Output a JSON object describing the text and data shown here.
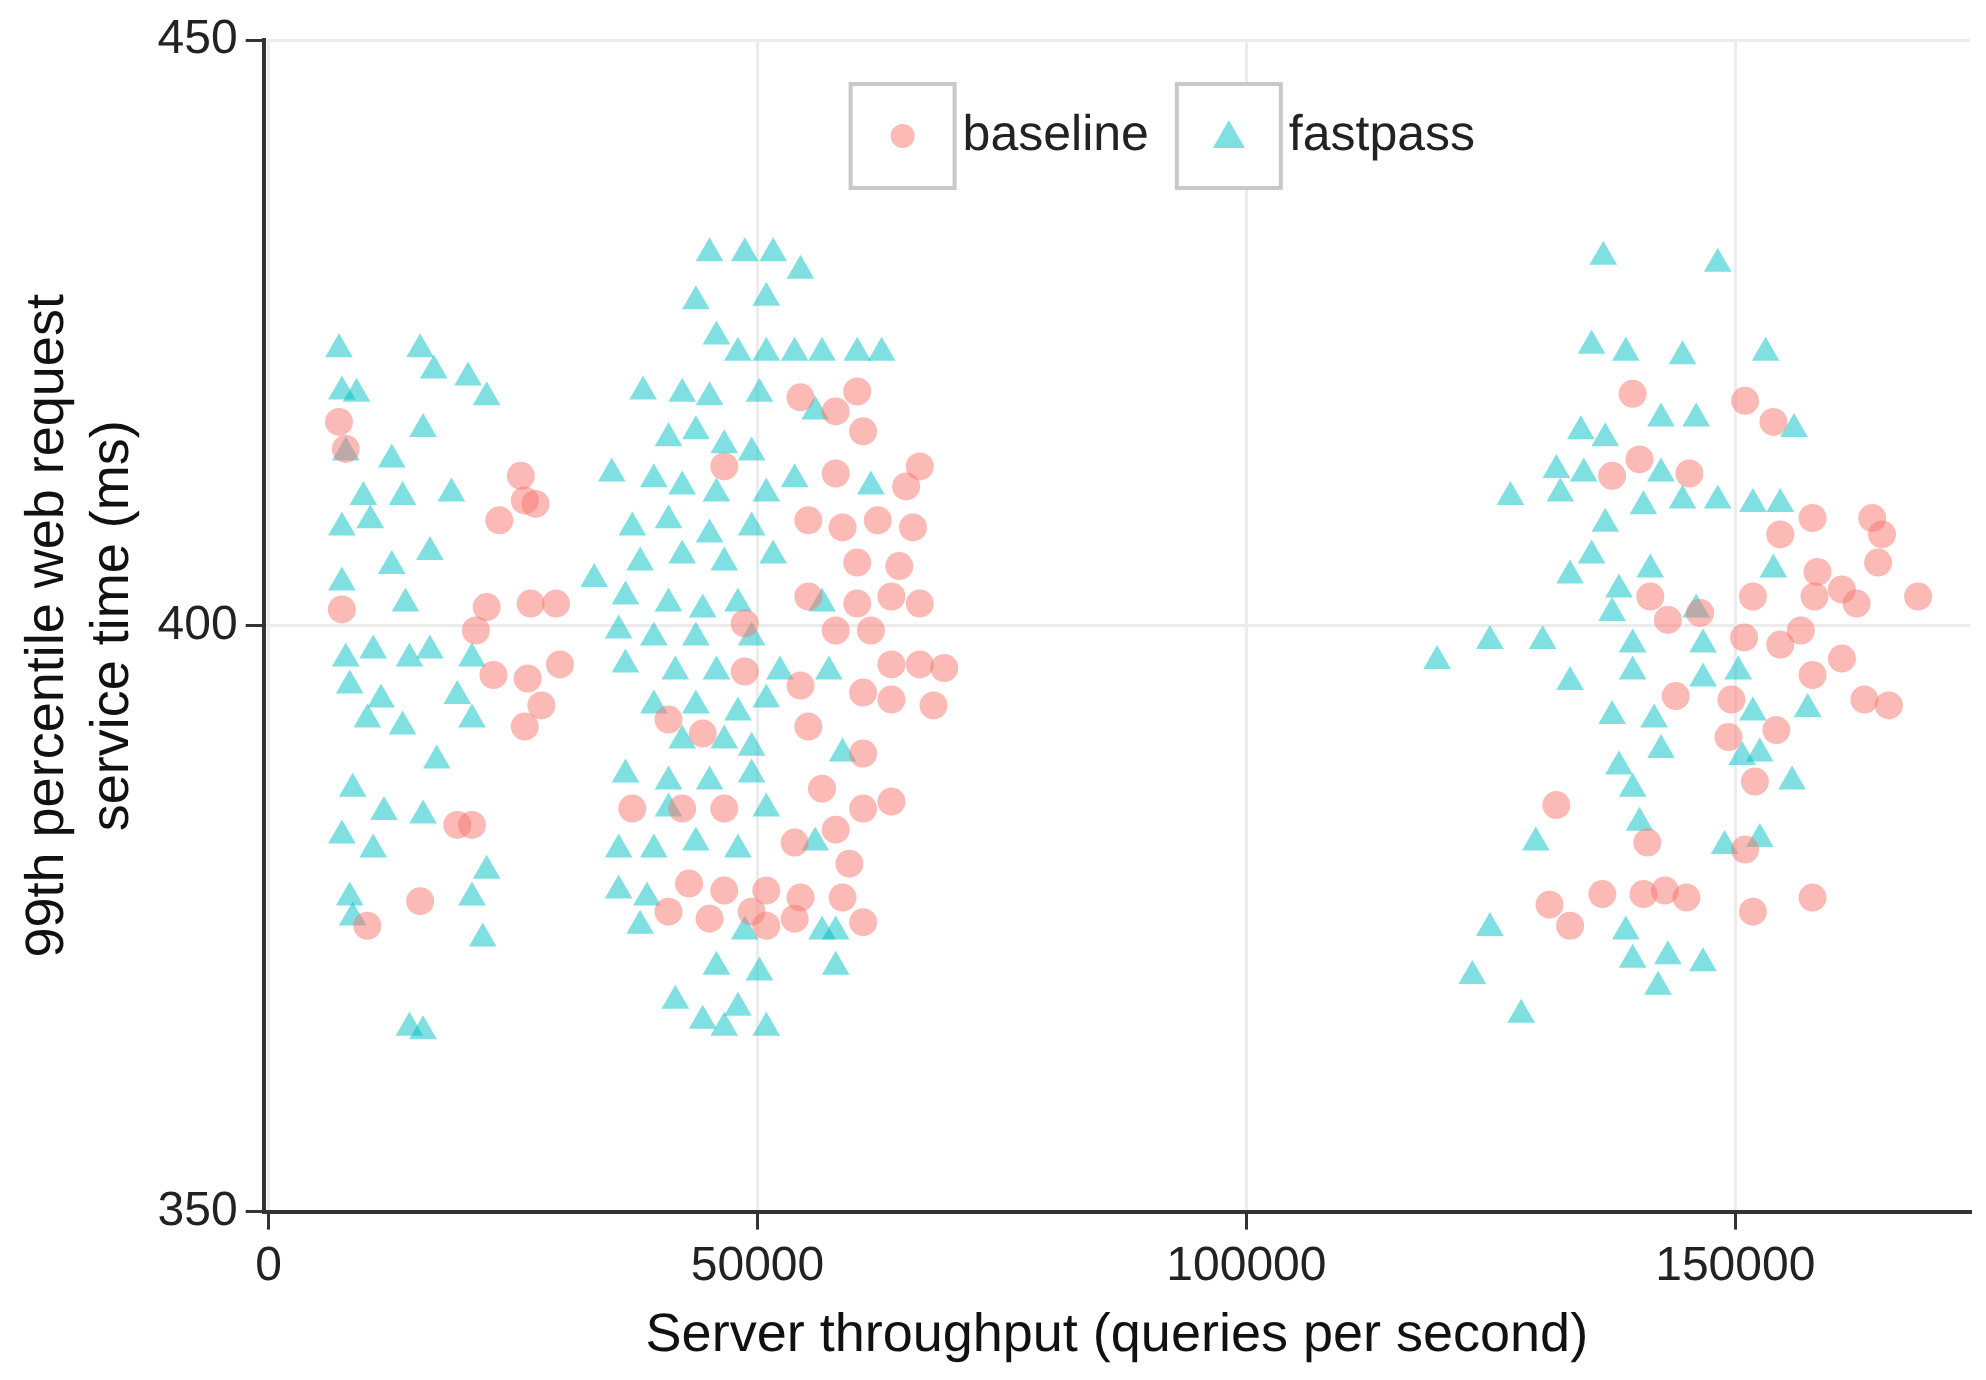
{
  "chart_data": {
    "type": "scatter",
    "xlabel": "Server throughput (queries per second)",
    "ylabel": "99th percentile web request\nservice time (ms)",
    "xlim": [
      -500,
      174000
    ],
    "xticks": [
      0,
      50000,
      100000,
      150000
    ],
    "ylim": [
      350,
      450
    ],
    "yticks": [
      350,
      400,
      450
    ],
    "grid": true,
    "legend": "top",
    "series": [
      {
        "name": "baseline",
        "color": "#f8766d",
        "marker": "circle",
        "x": [
          7200,
          7900,
          23600,
          26200,
          27300,
          25800,
          7500,
          22300,
          26800,
          29400,
          21200,
          23000,
          26500,
          27900,
          29800,
          26200,
          19300,
          20800,
          15500,
          10100,
          60200,
          58000,
          54400,
          60800,
          66600,
          65200,
          58000,
          46600,
          55200,
          58700,
          62300,
          65900,
          60200,
          64500,
          55200,
          60200,
          63700,
          66600,
          58000,
          61600,
          48700,
          63700,
          66600,
          69100,
          60800,
          63700,
          68000,
          54400,
          48700,
          40900,
          44400,
          55200,
          60800,
          56600,
          37200,
          42300,
          46600,
          60800,
          63700,
          58000,
          53800,
          59400,
          43000,
          46600,
          50900,
          54400,
          58700,
          40900,
          45100,
          49400,
          53800,
          60800,
          50900,
          139500,
          151000,
          153900,
          140200,
          145300,
          137400,
          157900,
          164000,
          165000,
          154600,
          164600,
          158400,
          160900,
          162400,
          168700,
          151800,
          158100,
          141300,
          143100,
          146400,
          150900,
          154600,
          156700,
          160900,
          157900,
          143900,
          149600,
          163200,
          165700,
          149300,
          154200,
          152000,
          131700,
          141000,
          151000,
          136400,
          140600,
          142800,
          145000,
          157900,
          131000,
          133100,
          151800
        ],
        "values": [
          417.4,
          415.1,
          409,
          410.7,
          410.4,
          412.8,
          401.4,
          401.6,
          401.9,
          401.9,
          399.6,
          395.8,
          395.5,
          393.2,
          396.7,
          391.4,
          383,
          383,
          376.5,
          374.4,
          420,
          418.3,
          419.5,
          416.6,
          413.6,
          411.9,
          413,
          413.6,
          409,
          408.4,
          409,
          408.4,
          405.4,
          405.1,
          402.5,
          401.9,
          402.5,
          401.9,
          399.6,
          399.6,
          400.2,
          396.7,
          396.7,
          396.4,
          394.3,
          393.7,
          393.2,
          394.9,
          396.1,
          392,
          390.8,
          391.4,
          389.1,
          386.1,
          384.4,
          384.4,
          384.4,
          384.4,
          385,
          382.6,
          381.5,
          379.7,
          378,
          377.4,
          377.4,
          376.8,
          376.8,
          375.6,
          375,
          375.6,
          375,
          374.7,
          374.4,
          419.8,
          419.2,
          417.4,
          414.2,
          413,
          412.8,
          409.2,
          409.2,
          407.8,
          407.8,
          405.4,
          404.6,
          403.1,
          401.9,
          402.5,
          402.5,
          402.5,
          402.5,
          400.5,
          401.1,
          399,
          398.4,
          399.6,
          397.2,
          395.8,
          394,
          393.7,
          393.7,
          393.2,
          390.5,
          391.1,
          386.7,
          384.7,
          381.5,
          380.9,
          377.1,
          377.1,
          377.4,
          376.8,
          376.8,
          376.2,
          374.4,
          375.6
        ]
      },
      {
        "name": "fastpass",
        "color": "#00bfc4",
        "marker": "triangle",
        "x": [
          7200,
          15500,
          16900,
          20400,
          22300,
          7500,
          9000,
          15800,
          7900,
          12600,
          18700,
          13700,
          9700,
          7500,
          10400,
          16500,
          12600,
          7500,
          14000,
          33300,
          7900,
          10700,
          14400,
          16500,
          20800,
          8300,
          11500,
          19300,
          10100,
          13700,
          20800,
          17200,
          8600,
          11800,
          15800,
          7500,
          10700,
          22300,
          8300,
          20800,
          8600,
          21900,
          14400,
          15800,
          45100,
          48700,
          51600,
          54400,
          43700,
          50900,
          45800,
          48000,
          50900,
          53800,
          56600,
          60200,
          62700,
          38300,
          42300,
          45100,
          50200,
          55900,
          40900,
          43700,
          46600,
          49400,
          35100,
          39400,
          42300,
          45800,
          50900,
          53800,
          61600,
          37200,
          40900,
          45100,
          49400,
          38000,
          42300,
          46600,
          51600,
          36500,
          40900,
          44400,
          48000,
          56600,
          35800,
          39400,
          43700,
          49400,
          36500,
          41600,
          45800,
          52300,
          57300,
          39400,
          43700,
          48000,
          50900,
          42300,
          46600,
          49400,
          58700,
          36500,
          40900,
          45100,
          49400,
          40900,
          50900,
          35800,
          39400,
          43700,
          48000,
          55900,
          35800,
          38700,
          38000,
          48700,
          56600,
          58000,
          45800,
          50200,
          58000,
          41600,
          44400,
          48000,
          50900,
          46600,
          136500,
          148200,
          135300,
          138800,
          144600,
          153100,
          142400,
          146000,
          156000,
          134200,
          136700,
          131700,
          134500,
          142400,
          127000,
          132100,
          140600,
          144600,
          148200,
          151800,
          154600,
          136700,
          135300,
          133100,
          141300,
          138100,
          153900,
          137400,
          146000,
          119500,
          124900,
          130300,
          139500,
          146700,
          133100,
          139500,
          150300,
          146700,
          137400,
          141700,
          151800,
          157400,
          142400,
          138100,
          150700,
          152500,
          155800,
          139500,
          140200,
          129600,
          148900,
          152500,
          124900,
          138800,
          139500,
          143100,
          146700,
          123100,
          142100,
          128100
        ],
        "values": [
          423.6,
          423.6,
          421.8,
          421.2,
          419.5,
          420,
          419.8,
          416.8,
          414.8,
          414.2,
          411.3,
          411,
          411,
          408.4,
          409,
          406.3,
          405.1,
          403.7,
          401.9,
          404,
          397.2,
          397.9,
          397.2,
          397.9,
          397.2,
          394.9,
          393.7,
          394,
          392,
          391.4,
          392,
          388.5,
          386.1,
          384.1,
          383.8,
          382.1,
          380.9,
          379.1,
          376.8,
          376.8,
          375.1,
          373.3,
          365.7,
          365.4,
          431.8,
          431.8,
          431.8,
          430.3,
          427.7,
          428,
          424.7,
          423.3,
          423.3,
          423.3,
          423.3,
          423.3,
          423.3,
          420,
          419.8,
          419.5,
          419.8,
          418.3,
          416,
          416.6,
          415.4,
          414.8,
          413,
          412.5,
          411.9,
          411.3,
          411.3,
          412.5,
          411.9,
          408.4,
          409,
          407.8,
          408.4,
          405.4,
          406,
          405.4,
          406,
          402.5,
          401.9,
          401.4,
          401.9,
          401.9,
          399.6,
          399,
          399,
          399,
          396.7,
          396.1,
          396.1,
          396.1,
          396.1,
          393.2,
          393.2,
          392.6,
          393.7,
          390.2,
          390.2,
          389.6,
          389.1,
          387.3,
          386.7,
          386.7,
          387.3,
          384.4,
          384.4,
          380.9,
          380.9,
          381.5,
          380.9,
          381.5,
          377.4,
          376.8,
          374.4,
          373.9,
          373.9,
          373.9,
          370.9,
          370.4,
          370.9,
          368,
          366.3,
          367.4,
          365.7,
          365.7,
          431.5,
          430.9,
          423.9,
          423.3,
          423,
          423.3,
          417.7,
          417.7,
          416.8,
          416.6,
          416,
          413.3,
          413,
          413,
          411,
          411.3,
          410.2,
          410.7,
          410.7,
          410.4,
          410.4,
          408.7,
          406,
          404.3,
          404.8,
          403.1,
          404.8,
          401.1,
          401.4,
          397,
          398.7,
          398.7,
          398.4,
          398.4,
          395.2,
          396.1,
          396.1,
          395.5,
          392.3,
          392,
          392.6,
          392.9,
          389.4,
          388,
          388.8,
          389.1,
          386.7,
          386.1,
          383.2,
          381.5,
          381.2,
          381.8,
          374.2,
          373.9,
          371.5,
          371.8,
          371.2,
          370.1,
          369.2,
          366.8
        ]
      }
    ]
  }
}
